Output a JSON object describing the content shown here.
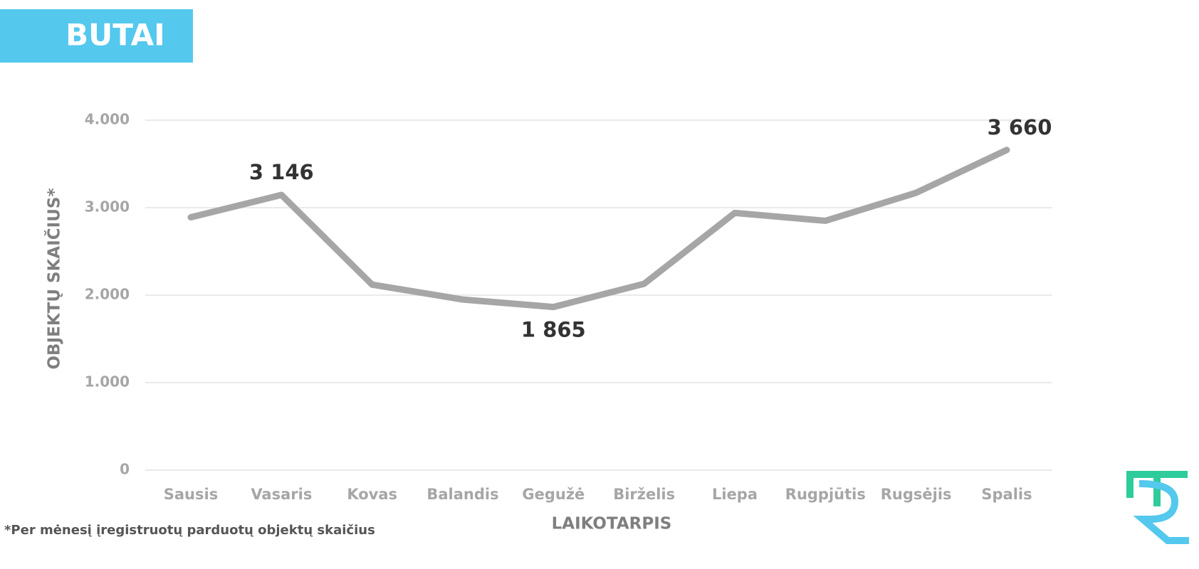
{
  "chart_data": {
    "type": "line",
    "title": "BUTAI",
    "y_label": "OBJEKTŲ SKAIČIUS*",
    "x_label": "LAIKOTARPIS",
    "footnote": "*Per mėnesį įregistruotų parduotų objektų skaičius",
    "categories": [
      "Sausis",
      "Vasaris",
      "Kovas",
      "Balandis",
      "Gegužė",
      "Birželis",
      "Liepa",
      "Rugpjūtis",
      "Rugsėjis",
      "Spalis"
    ],
    "series": [
      {
        "name": "Butai",
        "color": "#a6a6a6",
        "values": [
          2890,
          3146,
          2120,
          1950,
          1865,
          2130,
          2940,
          2850,
          3170,
          3660
        ],
        "value_labels": [
          null,
          "3 146",
          null,
          null,
          "1 865",
          null,
          null,
          null,
          null,
          "3 660"
        ]
      }
    ],
    "ylim": [
      0,
      4000
    ],
    "yticks": [
      0,
      {
        "value": 1000,
        "label": "1.000"
      },
      {
        "value": 2000,
        "label": "2.000"
      },
      {
        "value": 3000,
        "label": "3.000"
      },
      {
        "value": 4000,
        "label": "4.000"
      }
    ],
    "grid": true
  }
}
